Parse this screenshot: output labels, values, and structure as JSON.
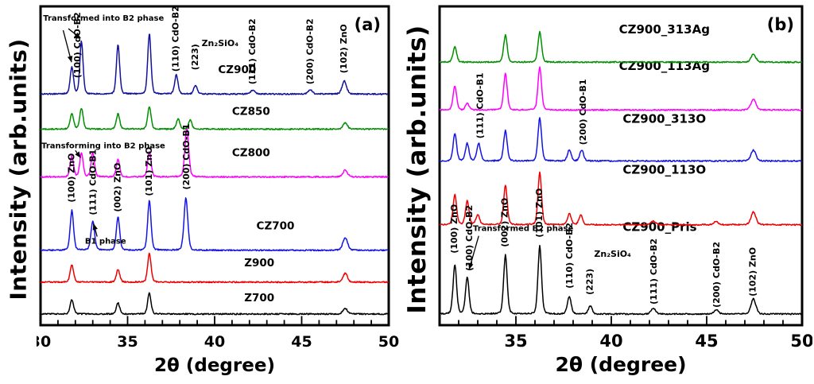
{
  "chart_data": [
    {
      "type": "line",
      "tag": "(a)",
      "xlabel": "2θ (degree)",
      "ylabel": "Intensity (arb.units)",
      "xlim": [
        30,
        50
      ],
      "xticks": [
        30,
        35,
        40,
        45,
        50
      ],
      "minor_tick_step": 1,
      "grid": false,
      "legend_position": "inline-labels",
      "series": [
        {
          "name": "Z700",
          "color": "#000000",
          "base": 0.035,
          "label_x": 41.7,
          "label_y": 0.075,
          "peaks": [
            [
              31.8,
              0.045,
              0.1
            ],
            [
              34.45,
              0.035,
              0.1
            ],
            [
              36.25,
              0.065,
              0.1
            ],
            [
              47.5,
              0.018,
              0.13
            ]
          ]
        },
        {
          "name": "Z900",
          "color": "#ee0000",
          "base": 0.135,
          "label_x": 41.7,
          "label_y": 0.185,
          "peaks": [
            [
              31.8,
              0.055,
              0.1
            ],
            [
              34.45,
              0.04,
              0.1
            ],
            [
              36.25,
              0.09,
              0.1
            ],
            [
              47.5,
              0.028,
              0.13
            ]
          ]
        },
        {
          "name": "CZ700",
          "color": "#1414e6",
          "base": 0.235,
          "label_x": 42.4,
          "label_y": 0.3,
          "peaks": [
            [
              31.8,
              0.125,
              0.1
            ],
            [
              33.0,
              0.09,
              0.11
            ],
            [
              34.45,
              0.105,
              0.1
            ],
            [
              36.25,
              0.155,
              0.1
            ],
            [
              38.35,
              0.165,
              0.11
            ],
            [
              47.5,
              0.04,
              0.14
            ]
          ]
        },
        {
          "name": "CZ800",
          "color": "#ff00ff",
          "base": 0.465,
          "label_x": 41.0,
          "label_y": 0.53,
          "peaks": [
            [
              31.8,
              0.065,
              0.1
            ],
            [
              32.35,
              0.075,
              0.1
            ],
            [
              33.0,
              0.075,
              0.1
            ],
            [
              34.45,
              0.055,
              0.1
            ],
            [
              36.25,
              0.08,
              0.1
            ],
            [
              38.4,
              0.155,
              0.11
            ],
            [
              47.5,
              0.022,
              0.13
            ]
          ]
        },
        {
          "name": "CZ850",
          "color": "#009000",
          "base": 0.615,
          "label_x": 41.0,
          "label_y": 0.66,
          "peaks": [
            [
              31.8,
              0.05,
              0.1
            ],
            [
              32.35,
              0.065,
              0.1
            ],
            [
              34.45,
              0.048,
              0.1
            ],
            [
              36.25,
              0.07,
              0.1
            ],
            [
              37.9,
              0.032,
              0.1
            ],
            [
              38.6,
              0.028,
              0.1
            ],
            [
              47.5,
              0.02,
              0.13
            ]
          ]
        },
        {
          "name": "CZ900",
          "color": "#12129b",
          "base": 0.725,
          "label_x": 40.2,
          "label_y": 0.79,
          "peaks": [
            [
              31.8,
              0.085,
              0.095
            ],
            [
              32.35,
              0.165,
              0.095
            ],
            [
              34.45,
              0.155,
              0.095
            ],
            [
              36.25,
              0.19,
              0.095
            ],
            [
              37.8,
              0.06,
              0.1
            ],
            [
              38.9,
              0.028,
              0.1
            ],
            [
              42.2,
              0.013,
              0.12
            ],
            [
              45.5,
              0.013,
              0.12
            ],
            [
              47.45,
              0.042,
              0.13
            ]
          ]
        }
      ],
      "annotations": [
        {
          "text": "(100) CdO-B2",
          "x": 32.1,
          "y": 0.775,
          "rot": -90
        },
        {
          "text": "(110) CdO-B2",
          "x": 37.75,
          "y": 0.795,
          "rot": -90
        },
        {
          "text": "(223)",
          "x": 38.85,
          "y": 0.8,
          "rot": -90
        },
        {
          "text": "Zn₂SiO₄",
          "x": 39.25,
          "y": 0.875,
          "rot": 0
        },
        {
          "text": "(111) CdO-B2",
          "x": 42.15,
          "y": 0.755,
          "rot": -90
        },
        {
          "text": "(200) CdO-B2",
          "x": 45.45,
          "y": 0.755,
          "rot": -90
        },
        {
          "text": "(102) ZnO",
          "x": 47.4,
          "y": 0.79,
          "rot": -90
        },
        {
          "text": "(100) ZnO",
          "x": 31.75,
          "y": 0.385,
          "rot": -90
        },
        {
          "text": "(111) CdO-B1",
          "x": 33.0,
          "y": 0.345,
          "rot": -90
        },
        {
          "text": "(002) ZnO",
          "x": 34.4,
          "y": 0.355,
          "rot": -90
        },
        {
          "text": "(101) ZnO",
          "x": 36.2,
          "y": 0.405,
          "rot": -90
        },
        {
          "text": "(200) CdO-B1",
          "x": 38.35,
          "y": 0.425,
          "rot": -90
        },
        {
          "text": "Transformed into B2 phase",
          "x": 30.15,
          "y": 0.955,
          "rot": 0,
          "bold": true
        },
        {
          "text": "Transforming into B2 phase",
          "x": 30.05,
          "y": 0.555,
          "rot": 0,
          "bold": true
        },
        {
          "text": "B1 phase",
          "x": 32.55,
          "y": 0.255,
          "rot": 0,
          "bold": true
        }
      ],
      "arrows": [
        {
          "x1": 31.3,
          "y1": 0.925,
          "x2": 31.78,
          "y2": 0.825
        },
        {
          "x1": 31.6,
          "y1": 0.93,
          "x2": 32.3,
          "y2": 0.9
        },
        {
          "x1": 32.0,
          "y1": 0.548,
          "x2": 32.3,
          "y2": 0.525
        },
        {
          "x1": 33.25,
          "y1": 0.278,
          "x2": 33.05,
          "y2": 0.318
        }
      ]
    },
    {
      "type": "line",
      "tag": "(b)",
      "xlabel": "2θ (degree)",
      "ylabel": "Intensity (arb.units)",
      "xlim": [
        31,
        50
      ],
      "xticks": [
        35,
        40,
        45,
        50
      ],
      "minor_tick_step": 1,
      "grid": false,
      "legend_position": "inline-labels",
      "series": [
        {
          "name": "CZ900_Pris",
          "color": "#000000",
          "base": 0.035,
          "label_x": 40.6,
          "label_y": 0.295,
          "peaks": [
            [
              31.8,
              0.155,
              0.095
            ],
            [
              32.45,
              0.115,
              0.095
            ],
            [
              34.45,
              0.185,
              0.095
            ],
            [
              36.25,
              0.215,
              0.095
            ],
            [
              37.8,
              0.055,
              0.1
            ],
            [
              38.9,
              0.025,
              0.1
            ],
            [
              42.2,
              0.018,
              0.12
            ],
            [
              45.5,
              0.014,
              0.12
            ],
            [
              47.45,
              0.048,
              0.13
            ]
          ]
        },
        {
          "name": "CZ900_113O",
          "color": "#ee0000",
          "base": 0.315,
          "label_x": 40.6,
          "label_y": 0.475,
          "peaks": [
            [
              31.8,
              0.095,
              0.095
            ],
            [
              32.45,
              0.075,
              0.095
            ],
            [
              33.0,
              0.03,
              0.1
            ],
            [
              34.45,
              0.125,
              0.095
            ],
            [
              36.25,
              0.165,
              0.095
            ],
            [
              37.8,
              0.035,
              0.1
            ],
            [
              38.4,
              0.03,
              0.1
            ],
            [
              42.2,
              0.012,
              0.12
            ],
            [
              45.5,
              0.01,
              0.12
            ],
            [
              47.45,
              0.04,
              0.13
            ]
          ]
        },
        {
          "name": "CZ900_313O",
          "color": "#1414e6",
          "base": 0.515,
          "label_x": 40.6,
          "label_y": 0.635,
          "peaks": [
            [
              31.8,
              0.085,
              0.095
            ],
            [
              32.45,
              0.055,
              0.095
            ],
            [
              33.05,
              0.055,
              0.1
            ],
            [
              34.45,
              0.095,
              0.095
            ],
            [
              36.25,
              0.135,
              0.095
            ],
            [
              37.8,
              0.035,
              0.1
            ],
            [
              38.45,
              0.035,
              0.1
            ],
            [
              47.45,
              0.035,
              0.13
            ]
          ]
        },
        {
          "name": "CZ900_113Ag",
          "color": "#ff00ff",
          "base": 0.675,
          "label_x": 40.4,
          "label_y": 0.8,
          "peaks": [
            [
              31.8,
              0.075,
              0.095
            ],
            [
              32.45,
              0.02,
              0.095
            ],
            [
              34.45,
              0.115,
              0.095
            ],
            [
              36.25,
              0.135,
              0.095
            ],
            [
              47.45,
              0.035,
              0.13
            ]
          ]
        },
        {
          "name": "CZ900_313Ag",
          "color": "#009000",
          "base": 0.825,
          "label_x": 40.4,
          "label_y": 0.915,
          "peaks": [
            [
              31.8,
              0.05,
              0.095
            ],
            [
              34.45,
              0.085,
              0.095
            ],
            [
              36.25,
              0.095,
              0.095
            ],
            [
              47.45,
              0.025,
              0.13
            ]
          ]
        }
      ],
      "annotations": [
        {
          "text": "(100) ZnO",
          "x": 31.75,
          "y": 0.225,
          "rot": -90
        },
        {
          "text": "(100) CdO-B2",
          "x": 32.55,
          "y": 0.17,
          "rot": -90
        },
        {
          "text": "(002) ZnO",
          "x": 34.4,
          "y": 0.245,
          "rot": -90
        },
        {
          "text": "(101) ZnO",
          "x": 36.2,
          "y": 0.275,
          "rot": -90
        },
        {
          "text": "(110) CdO-B2",
          "x": 37.8,
          "y": 0.115,
          "rot": -90
        },
        {
          "text": "(223)",
          "x": 38.85,
          "y": 0.095,
          "rot": -90
        },
        {
          "text": "Zn₂SiO₄",
          "x": 39.1,
          "y": 0.215,
          "rot": 0
        },
        {
          "text": "(111) CdO-B2",
          "x": 42.2,
          "y": 0.065,
          "rot": -90
        },
        {
          "text": "(200) CdO-B2",
          "x": 45.5,
          "y": 0.055,
          "rot": -90
        },
        {
          "text": "(102) ZnO",
          "x": 47.4,
          "y": 0.09,
          "rot": -90
        },
        {
          "text": "(111) CdO-B1",
          "x": 33.1,
          "y": 0.585,
          "rot": -90
        },
        {
          "text": "(200) CdO-B1",
          "x": 38.5,
          "y": 0.565,
          "rot": -90
        },
        {
          "text": "Transformed B2 phase",
          "x": 32.75,
          "y": 0.295,
          "rot": 0,
          "bold": true
        }
      ],
      "arrows": [
        {
          "x1": 33.05,
          "y1": 0.28,
          "x2": 32.55,
          "y2": 0.175
        }
      ]
    }
  ]
}
